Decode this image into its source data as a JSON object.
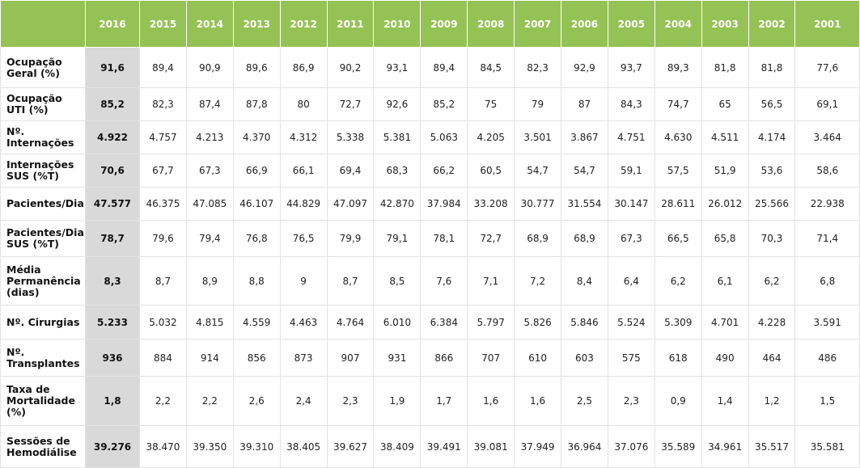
{
  "years": [
    "2016",
    "2015",
    "2014",
    "2013",
    "2012",
    "2011",
    "2010",
    "2009",
    "2008",
    "2007",
    "2006",
    "2005",
    "2004",
    "2003",
    "2002",
    "2001"
  ],
  "rows": [
    {
      "label": "Ocupação Geral (%)",
      "values": [
        "91,6",
        "89,4",
        "90,9",
        "89,6",
        "86,9",
        "90,2",
        "93,1",
        "89,4",
        "84,5",
        "82,3",
        "92,9",
        "93,7",
        "89,3",
        "81,8",
        "81,8",
        "77,6"
      ]
    },
    {
      "label": "Ocupação UTI (%)",
      "values": [
        "85,2",
        "82,3",
        "87,4",
        "87,8",
        "80",
        "72,7",
        "92,6",
        "85,2",
        "75",
        "79",
        "87",
        "84,3",
        "74,7",
        "65",
        "56,5",
        "69,1"
      ]
    },
    {
      "label": "Nº. Internações",
      "values": [
        "4.922",
        "4.757",
        "4.213",
        "4.370",
        "4.312",
        "5.338",
        "5.381",
        "5.063",
        "4.205",
        "3.501",
        "3.867",
        "4.751",
        "4.630",
        "4.511",
        "4.174",
        "3.464"
      ]
    },
    {
      "label": "Internações SUS (%T)",
      "values": [
        "70,6",
        "67,7",
        "67,3",
        "66,9",
        "66,1",
        "69,4",
        "68,3",
        "66,2",
        "60,5",
        "54,7",
        "54,7",
        "59,1",
        "57,5",
        "51,9",
        "53,6",
        "58,6"
      ]
    },
    {
      "label": "Pacientes/Dia",
      "values": [
        "47.577",
        "46.375",
        "47.085",
        "46.107",
        "44.829",
        "47.097",
        "42.870",
        "37.984",
        "33.208",
        "30.777",
        "31.554",
        "30.147",
        "28.611",
        "26.012",
        "25.566",
        "22.938"
      ]
    },
    {
      "label": "Pacientes/Dia SUS (%T)",
      "values": [
        "78,7",
        "79,6",
        "79,4",
        "76,8",
        "76,5",
        "79,9",
        "79,1",
        "78,1",
        "72,7",
        "68,9",
        "68,9",
        "67,3",
        "66,5",
        "65,8",
        "70,3",
        "71,4"
      ]
    },
    {
      "label": "Média Permanência (dias)",
      "values": [
        "8,3",
        "8,7",
        "8,9",
        "8,8",
        "9",
        "8,7",
        "8,5",
        "7,6",
        "7,1",
        "7,2",
        "8,4",
        "6,4",
        "6,2",
        "6,1",
        "6,2",
        "6,8"
      ]
    },
    {
      "label": "Nº. Cirurgias",
      "values": [
        "5.233",
        "5.032",
        "4.815",
        "4.559",
        "4.463",
        "4.764",
        "6.010",
        "6.384",
        "5.797",
        "5.826",
        "5.846",
        "5.524",
        "5.309",
        "4.701",
        "4.228",
        "3.591"
      ]
    },
    {
      "label": "Nº. Transplantes",
      "values": [
        "936",
        "884",
        "914",
        "856",
        "873",
        "907",
        "931",
        "866",
        "707",
        "610",
        "603",
        "575",
        "618",
        "490",
        "464",
        "486"
      ]
    },
    {
      "label": "Taxa de Mortalidade (%)",
      "values": [
        "1,8",
        "2,2",
        "2,2",
        "2,6",
        "2,4",
        "2,3",
        "1,9",
        "1,7",
        "1,6",
        "1,6",
        "2,5",
        "2,3",
        "0,9",
        "1,4",
        "1,2",
        "1,5"
      ]
    },
    {
      "label": "Sessões de Hemodiálise",
      "values": [
        "39.276",
        "38.470",
        "39.350",
        "39.310",
        "38.405",
        "39.627",
        "38.409",
        "39.491",
        "39.081",
        "37.949",
        "36.964",
        "37.076",
        "35.589",
        "34.961",
        "35.517",
        "35.581"
      ]
    }
  ]
}
